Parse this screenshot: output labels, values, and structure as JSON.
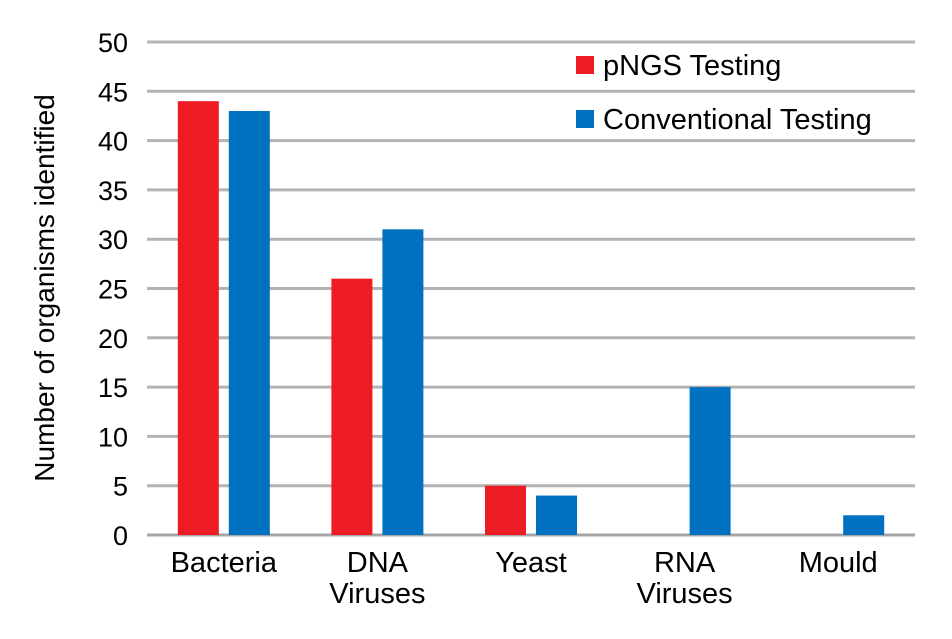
{
  "chart_data": {
    "type": "bar",
    "title": "",
    "xlabel": "",
    "ylabel": "Number of organisms identified",
    "ylim": [
      0,
      50
    ],
    "yticks": [
      0,
      5,
      10,
      15,
      20,
      25,
      30,
      35,
      40,
      45,
      50
    ],
    "grid": true,
    "legend_position": "top-right",
    "categories": [
      [
        "Bacteria"
      ],
      [
        "DNA",
        "Viruses"
      ],
      [
        "Yeast"
      ],
      [
        "RNA",
        "Viruses"
      ],
      [
        "Mould"
      ]
    ],
    "series": [
      {
        "name": "pNGS Testing",
        "color": "#ed1c24",
        "values": [
          44,
          26,
          5,
          0,
          0
        ]
      },
      {
        "name": "Conventional Testing",
        "color": "#0070c0",
        "values": [
          43,
          31,
          4,
          15,
          2
        ]
      }
    ]
  }
}
